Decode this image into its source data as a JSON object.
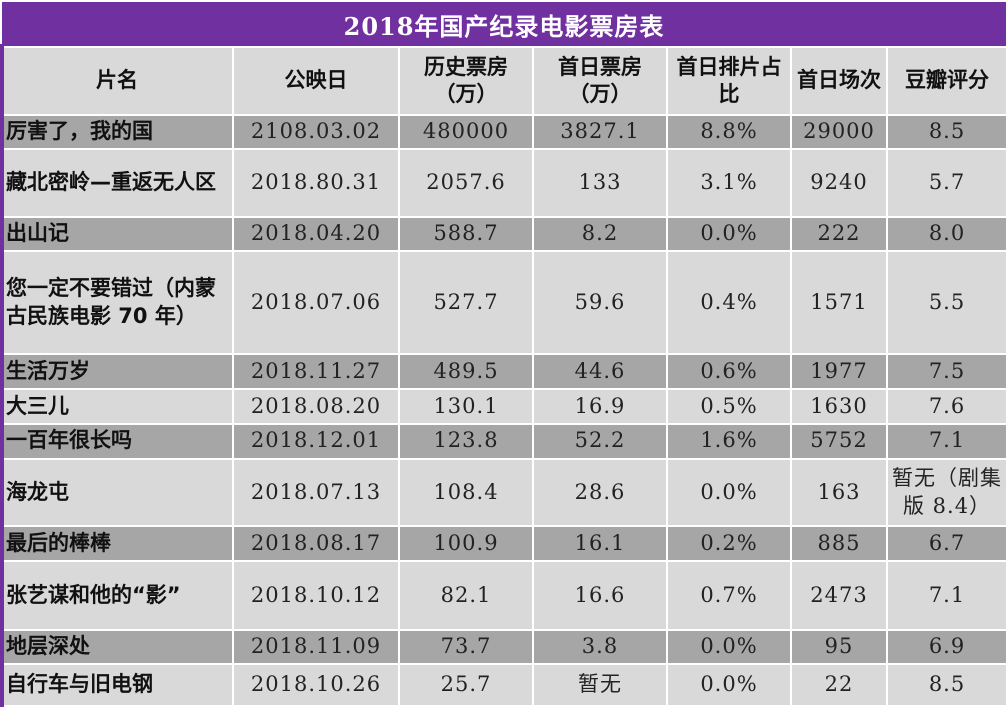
{
  "title": "2018年国产纪录电影票房表",
  "headers": [
    "片名",
    "公映日",
    "历史票房（万）",
    "首日票房（万）",
    "首日排片占比",
    "首日场次",
    "豆瓣评分"
  ],
  "rows": [
    {
      "name": "厉害了，我的国",
      "date": "2108.03.02",
      "total": "480000",
      "first_day": "3827.1",
      "share": "8.8%",
      "screenings": "29000",
      "rating": "8.5"
    },
    {
      "name": "藏北密岭—重返无人区",
      "date": "2018.80.31",
      "total": "2057.6",
      "first_day": "133",
      "share": "3.1%",
      "screenings": "9240",
      "rating": "5.7"
    },
    {
      "name": "出山记",
      "date": "2018.04.20",
      "total": "588.7",
      "first_day": "8.2",
      "share": "0.0%",
      "screenings": "222",
      "rating": "8.0"
    },
    {
      "name": "您一定不要错过（内蒙古民族电影 70 年）",
      "date": "2018.07.06",
      "total": "527.7",
      "first_day": "59.6",
      "share": "0.4%",
      "screenings": "1571",
      "rating": "5.5"
    },
    {
      "name": "生活万岁",
      "date": "2018.11.27",
      "total": "489.5",
      "first_day": "44.6",
      "share": "0.6%",
      "screenings": "1977",
      "rating": "7.5"
    },
    {
      "name": "大三儿",
      "date": "2018.08.20",
      "total": "130.1",
      "first_day": "16.9",
      "share": "0.5%",
      "screenings": "1630",
      "rating": "7.6"
    },
    {
      "name": "一百年很长吗",
      "date": "2018.12.01",
      "total": "123.8",
      "first_day": "52.2",
      "share": "1.6%",
      "screenings": "5752",
      "rating": "7.1"
    },
    {
      "name": "海龙屯",
      "date": "2018.07.13",
      "total": "108.4",
      "first_day": "28.6",
      "share": "0.0%",
      "screenings": "163",
      "rating": "暂无（剧集版 8.4）"
    },
    {
      "name": "最后的棒棒",
      "date": "2018.08.17",
      "total": "100.9",
      "first_day": "16.1",
      "share": "0.2%",
      "screenings": "885",
      "rating": "6.7"
    },
    {
      "name": "张艺谋和他的“影”",
      "date": "2018.10.12",
      "total": "82.1",
      "first_day": "16.6",
      "share": "0.7%",
      "screenings": "2473",
      "rating": "7.1"
    },
    {
      "name": "地层深处",
      "date": "2018.11.09",
      "total": "73.7",
      "first_day": "3.8",
      "share": "0.0%",
      "screenings": "95",
      "rating": "6.9"
    },
    {
      "name": "自行车与旧电钢",
      "date": "2018.10.26",
      "total": "25.7",
      "first_day": "暂无",
      "share": "0.0%",
      "screenings": "22",
      "rating": "8.5"
    }
  ],
  "colors": {
    "title_bg": "#7030a0",
    "header_bg": "#d9d9d9",
    "row_dark": "#a6a6a6",
    "row_light": "#d9d9d9"
  }
}
